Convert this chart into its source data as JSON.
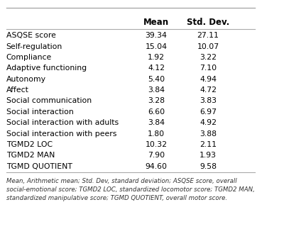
{
  "rows": [
    [
      "ASQSE score",
      "39.34",
      "27.11"
    ],
    [
      "Self-regulation",
      "15.04",
      "10.07"
    ],
    [
      "Compliance",
      "1.92",
      "3.22"
    ],
    [
      "Adaptive functioning",
      "4.12",
      "7.10"
    ],
    [
      "Autonomy",
      "5.40",
      "4.94"
    ],
    [
      "Affect",
      "3.84",
      "4.72"
    ],
    [
      "Social communication",
      "3.28",
      "3.83"
    ],
    [
      "Social interaction",
      "6.60",
      "6.97"
    ],
    [
      "Social interaction with adults",
      "3.84",
      "4.92"
    ],
    [
      "Social interaction with peers",
      "1.80",
      "3.88"
    ],
    [
      "TGMD2 LOC",
      "10.32",
      "2.11"
    ],
    [
      "TGMD2 MAN",
      "7.90",
      "1.93"
    ],
    [
      "TGMD QUOTIENT",
      "94.60",
      "9.58"
    ]
  ],
  "col_headers": [
    "",
    "Mean",
    "Std. Dev."
  ],
  "footnote": "Mean, Arithmetic mean; Std. Dev, standard deviation; ASQSE score, overall social-emotional score; TGMD2 LOC, standardized locomotor score; TGMD2 MAN, standardized manipulative score; TGMD QUOTIENT, overall motor score.",
  "bg_color": "#ffffff",
  "header_line_color": "#aaaaaa",
  "footer_line_color": "#aaaaaa",
  "text_color": "#000000",
  "footnote_color": "#333333"
}
